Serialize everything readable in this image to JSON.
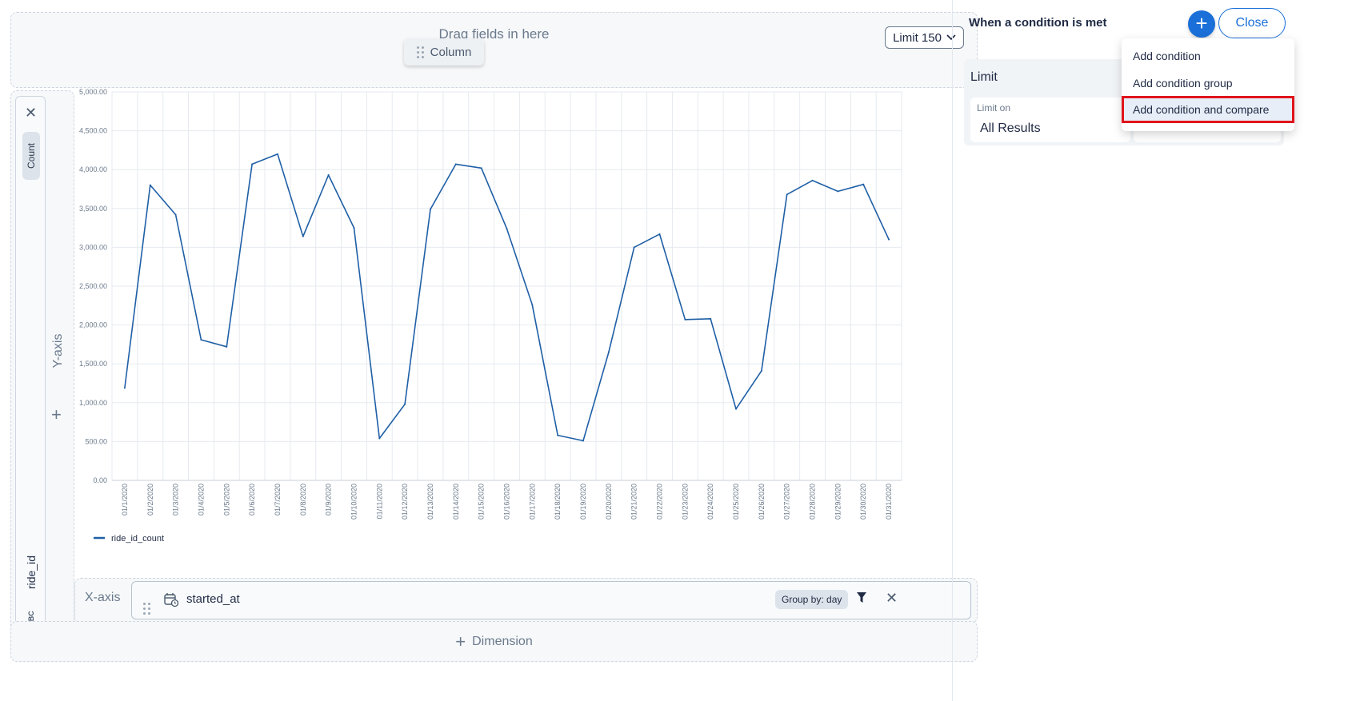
{
  "builder": {
    "drag_hint": "Drag fields in here",
    "column_chip": "Column",
    "limit_label": "Limit 150",
    "y_measure": "Count",
    "y_field": "ride_id",
    "y_field_type": "ABC",
    "y_axis_label": "Y-axis",
    "x_axis_label": "X-axis",
    "x_field": "started_at",
    "x_group_by": "Group by: day",
    "dimension_label": "Dimension"
  },
  "panel": {
    "title": "When a condition is met",
    "close_label": "Close",
    "card_title": "Limit",
    "limit_on_label": "Limit on",
    "limit_on_value": "All Results",
    "menu": [
      "Add condition",
      "Add condition group",
      "Add condition and compare"
    ]
  },
  "colors": {
    "accent": "#1a6fd8",
    "series": "#1f5fa6",
    "highlight": "#e0141c"
  },
  "chart_data": {
    "type": "line",
    "categories": [
      "01/1/2020",
      "01/2/2020",
      "01/3/2020",
      "01/4/2020",
      "01/5/2020",
      "01/6/2020",
      "01/7/2020",
      "01/8/2020",
      "01/9/2020",
      "01/10/2020",
      "01/11/2020",
      "01/12/2020",
      "01/13/2020",
      "01/14/2020",
      "01/15/2020",
      "01/16/2020",
      "01/17/2020",
      "01/18/2020",
      "01/19/2020",
      "01/20/2020",
      "01/21/2020",
      "01/22/2020",
      "01/23/2020",
      "01/24/2020",
      "01/25/2020",
      "01/26/2020",
      "01/27/2020",
      "01/28/2020",
      "01/29/2020",
      "01/30/2020",
      "01/31/2020"
    ],
    "series": [
      {
        "name": "ride_id_count",
        "values": [
          1190,
          3800,
          3420,
          1810,
          1720,
          4070,
          4200,
          3140,
          3930,
          3250,
          540,
          980,
          3490,
          4070,
          4020,
          3240,
          2260,
          580,
          510,
          1650,
          3000,
          3170,
          2070,
          2080,
          920,
          1410,
          3680,
          3860,
          3720,
          3810,
          3100
        ]
      }
    ],
    "y_ticks": [
      "0.00",
      "500.00",
      "1,000.00",
      "1,500.00",
      "2,000.00",
      "2,500.00",
      "3,000.00",
      "3,500.00",
      "4,000.00",
      "4,500.00",
      "5,000.00"
    ],
    "ylim": [
      0,
      5000
    ],
    "grid": true,
    "legend": "bottom-left"
  }
}
